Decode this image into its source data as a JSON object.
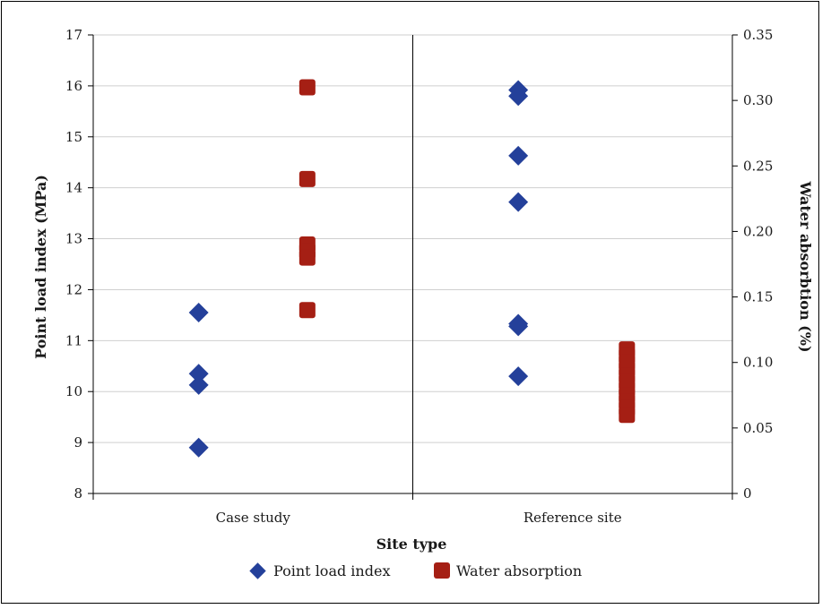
{
  "chart_data": {
    "type": "scatter",
    "xlabel": "Site type",
    "ylabel": "Point load index (MPa)",
    "y2label": "Water absorbtion (%)",
    "categories": [
      "Case study",
      "Reference site"
    ],
    "ylim": [
      8,
      17
    ],
    "y2lim": [
      0,
      0.35
    ],
    "yticks": [
      "8",
      "9",
      "10",
      "11",
      "12",
      "13",
      "14",
      "15",
      "16",
      "17"
    ],
    "y2ticks": [
      "0",
      "0.05",
      "0.10",
      "0.15",
      "0.20",
      "0.25",
      "0.30",
      "0.35"
    ],
    "grid": true,
    "legend_position": "bottom",
    "series": [
      {
        "name": "Point load index",
        "axis": "left",
        "marker": "diamond",
        "color": "#24409a",
        "points": [
          {
            "x": "Case study",
            "y": 11.55
          },
          {
            "x": "Case study",
            "y": 10.35
          },
          {
            "x": "Case study",
            "y": 10.13
          },
          {
            "x": "Case study",
            "y": 8.9
          },
          {
            "x": "Reference site",
            "y": 15.92
          },
          {
            "x": "Reference site",
            "y": 15.8
          },
          {
            "x": "Reference site",
            "y": 14.63
          },
          {
            "x": "Reference site",
            "y": 13.72
          },
          {
            "x": "Reference site",
            "y": 11.33
          },
          {
            "x": "Reference site",
            "y": 11.28
          },
          {
            "x": "Reference site",
            "y": 10.3
          }
        ]
      },
      {
        "name": "Water absorption",
        "axis": "right",
        "marker": "square",
        "color": "#a51f14",
        "points": [
          {
            "x": "Case study",
            "y": 0.31
          },
          {
            "x": "Case study",
            "y": 0.24
          },
          {
            "x": "Case study",
            "y": 0.19
          },
          {
            "x": "Case study",
            "y": 0.185
          },
          {
            "x": "Case study",
            "y": 0.18
          },
          {
            "x": "Case study",
            "y": 0.14
          },
          {
            "x": "Reference site",
            "y": 0.11
          },
          {
            "x": "Reference site",
            "y": 0.105
          },
          {
            "x": "Reference site",
            "y": 0.1
          },
          {
            "x": "Reference site",
            "y": 0.095
          },
          {
            "x": "Reference site",
            "y": 0.09
          },
          {
            "x": "Reference site",
            "y": 0.085
          },
          {
            "x": "Reference site",
            "y": 0.08
          },
          {
            "x": "Reference site",
            "y": 0.075
          },
          {
            "x": "Reference site",
            "y": 0.07
          },
          {
            "x": "Reference site",
            "y": 0.065
          },
          {
            "x": "Reference site",
            "y": 0.06
          }
        ]
      }
    ]
  }
}
